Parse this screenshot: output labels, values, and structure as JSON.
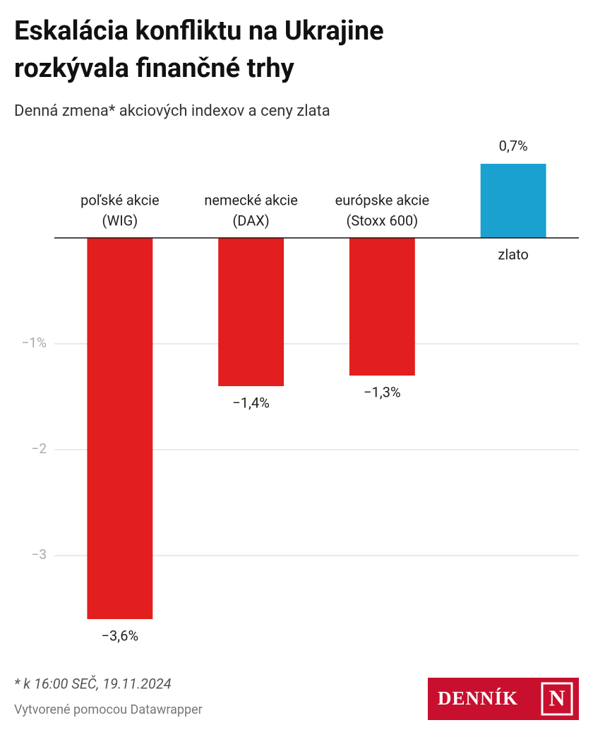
{
  "chart_data": {
    "type": "bar",
    "title": [
      "Eskalácia konfliktu na Ukrajine",
      "rozkývala finančné trhy"
    ],
    "subtitle": "Denná zmena* akciových indexov a ceny zlata",
    "categories": [
      [
        "poľské akcie",
        "(WIG)"
      ],
      [
        "nemecké akcie",
        "(DAX)"
      ],
      [
        "európske akcie",
        "(Stoxx 600)"
      ],
      [
        "zlato"
      ]
    ],
    "values": [
      -3.6,
      -1.4,
      -1.3,
      0.7
    ],
    "value_labels": [
      "−3,6%",
      "−1,4%",
      "−1,3%",
      "0,7%"
    ],
    "colors": [
      "#e31e1e",
      "#e31e1e",
      "#e31e1e",
      "#1aa1cf"
    ],
    "ylim": [
      -3.6,
      0.7
    ],
    "yticks": [
      {
        "value": -1,
        "label": "−1%"
      },
      {
        "value": -2,
        "label": "−2"
      },
      {
        "value": -3,
        "label": "−3"
      }
    ],
    "grid": true,
    "note": "* k 16:00 SEČ, 19.11.2024",
    "credit": "Vytvorené pomocou Datawrapper",
    "logo": [
      "DENNÍK",
      "N"
    ]
  }
}
